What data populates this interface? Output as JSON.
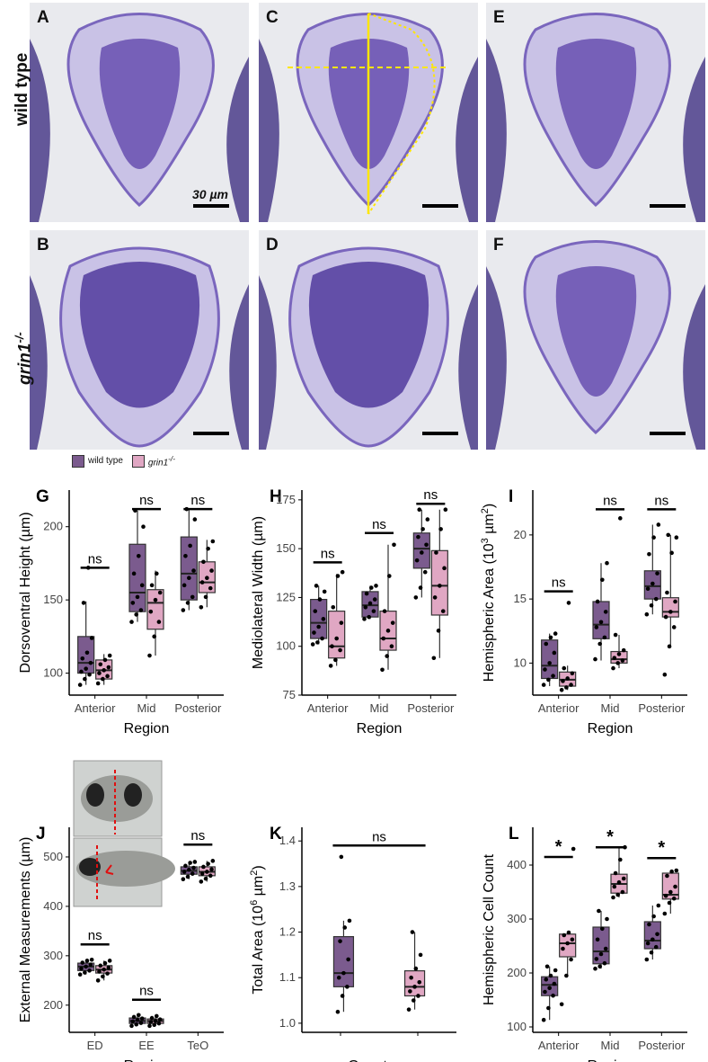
{
  "figure": {
    "row_labels": {
      "wild_type": "wild type",
      "mutant_main": "grin1",
      "mutant_sup": "-/-"
    },
    "panel_letters": {
      "A": "A",
      "B": "B",
      "C": "C",
      "D": "D",
      "E": "E",
      "F": "F"
    },
    "scale_label": "30 µm",
    "legend": {
      "wild_type": "wild type",
      "mutant": "grin1",
      "mutant_sup": "-/-"
    },
    "colors": {
      "wild_type": "#7b5b8e",
      "mutant": "#e0a7c3",
      "stain": "#5a3fa8",
      "background": "#e9eaee"
    }
  },
  "chart_data": [
    {
      "id": "G",
      "type": "box",
      "letter": "G",
      "categories": [
        "Anterior",
        "Mid",
        "Posterior"
      ],
      "xlabel": "Region",
      "ylabel": "Dorsoventral Height (µm)",
      "yticks": [
        100,
        150,
        200
      ],
      "ylim": [
        85,
        225
      ],
      "series": [
        {
          "group": "wild_type",
          "boxes": [
            {
              "min": 92,
              "q1": 100,
              "med": 107,
              "q3": 125,
              "max": 149
            },
            {
              "min": 135,
              "q1": 142,
              "med": 155,
              "q3": 188,
              "max": 211
            },
            {
              "min": 143,
              "q1": 150,
              "med": 168,
              "q3": 193,
              "max": 212
            }
          ],
          "points": [
            [
              92,
              96,
              99,
              101,
              103,
              107,
              110,
              114,
              124,
              148,
              172
            ],
            [
              135,
              140,
              143,
              148,
              152,
              160,
              168,
              180,
              200,
              211
            ],
            [
              143,
              148,
              152,
              160,
              165,
              170,
              180,
              187,
              205,
              212
            ]
          ]
        },
        {
          "group": "mutant",
          "boxes": [
            {
              "min": 92,
              "q1": 96,
              "med": 102,
              "q3": 109,
              "max": 113
            },
            {
              "min": 112,
              "q1": 130,
              "med": 148,
              "q3": 157,
              "max": 170
            },
            {
              "min": 145,
              "q1": 155,
              "med": 162,
              "q3": 176,
              "max": 191
            }
          ],
          "points": [
            [
              93,
              96,
              98,
              100,
              102,
              104,
              106,
              109,
              112
            ],
            [
              112,
              125,
              135,
              142,
              150,
              155,
              160,
              168
            ],
            [
              145,
              152,
              158,
              162,
              165,
              170,
              176,
              185,
              190
            ]
          ]
        }
      ],
      "annotations": [
        "ns",
        "ns",
        "ns"
      ],
      "annotation_y": [
        172,
        212,
        212
      ]
    },
    {
      "id": "H",
      "type": "box",
      "letter": "H",
      "categories": [
        "Anterior",
        "Mid",
        "Posterior"
      ],
      "xlabel": "Region",
      "ylabel": "Mediolateral Width (µm)",
      "yticks": [
        75,
        100,
        125,
        150,
        175
      ],
      "ylim": [
        75,
        180
      ],
      "series": [
        {
          "group": "wild_type",
          "boxes": [
            {
              "min": 101,
              "q1": 104,
              "med": 112,
              "q3": 124,
              "max": 131
            },
            {
              "min": 114,
              "q1": 115,
              "med": 121,
              "q3": 128,
              "max": 131
            },
            {
              "min": 125,
              "q1": 140,
              "med": 150,
              "q3": 158,
              "max": 170
            }
          ],
          "points": [
            [
              101,
              102,
              104,
              107,
              110,
              114,
              118,
              124,
              128,
              131
            ],
            [
              114,
              115,
              118,
              120,
              122,
              124,
              127,
              130,
              131
            ],
            [
              125,
              130,
              138,
              144,
              148,
              152,
              156,
              160,
              165,
              170
            ]
          ]
        },
        {
          "group": "mutant",
          "boxes": [
            {
              "min": 90,
              "q1": 94,
              "med": 100,
              "q3": 118,
              "max": 137
            },
            {
              "min": 88,
              "q1": 98,
              "med": 104,
              "q3": 118,
              "max": 152
            },
            {
              "min": 94,
              "q1": 116,
              "med": 131,
              "q3": 149,
              "max": 170
            }
          ],
          "points": [
            [
              90,
              93,
              98,
              100,
              104,
              112,
              120,
              136,
              138
            ],
            [
              88,
              95,
              100,
              104,
              108,
              112,
              118,
              136,
              152
            ],
            [
              94,
              108,
              118,
              125,
              131,
              140,
              148,
              160,
              170
            ]
          ]
        }
      ],
      "annotations": [
        "ns",
        "ns",
        "ns"
      ],
      "annotation_y": [
        143,
        158,
        173
      ]
    },
    {
      "id": "I",
      "type": "box",
      "letter": "I",
      "categories": [
        "Anterior",
        "Mid",
        "Posterior"
      ],
      "xlabel": "Region",
      "ylabel": "Hemispheric Area (10^3 µm^2)",
      "yticks": [
        10,
        15,
        20
      ],
      "ylim": [
        7.5,
        23.5
      ],
      "series": [
        {
          "group": "wild_type",
          "boxes": [
            {
              "min": 8.2,
              "q1": 8.8,
              "med": 9.8,
              "q3": 11.8,
              "max": 12.3
            },
            {
              "min": 10.2,
              "q1": 11.9,
              "med": 13.0,
              "q3": 14.8,
              "max": 17.8
            },
            {
              "min": 13.8,
              "q1": 15.0,
              "med": 16.0,
              "q3": 17.2,
              "max": 20.8
            }
          ],
          "points": [
            [
              8.3,
              8.7,
              9.0,
              9.5,
              10.0,
              10.8,
              11.5,
              12.0,
              12.3
            ],
            [
              10.3,
              11.5,
              12.0,
              12.8,
              13.2,
              14.0,
              14.8,
              16.5,
              17.8
            ],
            [
              13.8,
              14.5,
              15.0,
              15.8,
              16.2,
              17.0,
              18.5,
              19.8,
              20.8
            ]
          ]
        },
        {
          "group": "mutant",
          "boxes": [
            {
              "min": 7.9,
              "q1": 8.2,
              "med": 8.7,
              "q3": 9.3,
              "max": 9.8
            },
            {
              "min": 9.6,
              "q1": 10.0,
              "med": 10.3,
              "q3": 10.9,
              "max": 12.2
            },
            {
              "min": 11.3,
              "q1": 13.6,
              "med": 14.0,
              "q3": 15.1,
              "max": 20.0
            }
          ],
          "points": [
            [
              7.9,
              8.1,
              8.3,
              8.6,
              8.8,
              9.2,
              9.6,
              14.7
            ],
            [
              9.6,
              10.0,
              10.2,
              10.4,
              10.7,
              11.0,
              12.2,
              21.3
            ],
            [
              9.1,
              11.3,
              12.8,
              13.6,
              14.0,
              14.8,
              15.5,
              18.6,
              19.8,
              20.0
            ]
          ]
        }
      ],
      "annotations": [
        "ns",
        "ns",
        "ns"
      ],
      "annotation_y": [
        15.6,
        22.0,
        22.0
      ]
    },
    {
      "id": "J",
      "type": "box",
      "letter": "J",
      "categories": [
        "ED",
        "EE",
        "TeO"
      ],
      "xlabel": "Region",
      "ylabel": "External Measurements (µm)",
      "yticks": [
        200,
        300,
        400,
        500
      ],
      "ylim": [
        145,
        560
      ],
      "series": [
        {
          "group": "wild_type",
          "boxes": [
            {
              "min": 262,
              "q1": 270,
              "med": 278,
              "q3": 285,
              "max": 292
            },
            {
              "min": 158,
              "q1": 163,
              "med": 168,
              "q3": 174,
              "max": 180
            },
            {
              "min": 455,
              "q1": 465,
              "med": 472,
              "q3": 480,
              "max": 490
            }
          ],
          "points": [
            [
              262,
              266,
              270,
              274,
              278,
              282,
              286,
              290,
              292
            ],
            [
              158,
              161,
              164,
              167,
              170,
              173,
              176,
              180
            ],
            [
              455,
              460,
              466,
              470,
              474,
              478,
              482,
              488,
              490
            ]
          ]
        },
        {
          "group": "mutant",
          "boxes": [
            {
              "min": 250,
              "q1": 265,
              "med": 272,
              "q3": 280,
              "max": 290
            },
            {
              "min": 158,
              "q1": 163,
              "med": 168,
              "q3": 172,
              "max": 178
            },
            {
              "min": 450,
              "q1": 462,
              "med": 470,
              "q3": 480,
              "max": 492
            }
          ],
          "points": [
            [
              250,
              258,
              264,
              268,
              272,
              276,
              280,
              285,
              290
            ],
            [
              158,
              160,
              163,
              166,
              168,
              171,
              174,
              178
            ],
            [
              450,
              456,
              462,
              466,
              470,
              475,
              480,
              486,
              492
            ]
          ]
        }
      ],
      "annotations": [
        "ns",
        "ns",
        "ns"
      ],
      "annotation_y": [
        323,
        211,
        525
      ]
    },
    {
      "id": "K",
      "type": "box",
      "letter": "K",
      "categories": [
        "",
        ""
      ],
      "xlabel": "Genotype",
      "ylabel": "Total Area (10^6 µm^2)",
      "yticks": [
        1.0,
        1.1,
        1.2,
        1.3,
        1.4
      ],
      "ylim": [
        0.98,
        1.43
      ],
      "series": [
        {
          "group": "wild_type",
          "boxes": [
            {
              "min": 1.025,
              "q1": 1.08,
              "med": 1.11,
              "q3": 1.19,
              "max": 1.225
            }
          ],
          "points": [
            [
              1.025,
              1.06,
              1.08,
              1.1,
              1.11,
              1.14,
              1.18,
              1.21,
              1.225,
              1.365
            ]
          ]
        },
        {
          "group": "mutant",
          "boxes": [
            {
              "min": 1.03,
              "q1": 1.06,
              "med": 1.08,
              "q3": 1.115,
              "max": 1.2
            }
          ],
          "points": [
            [
              1.03,
              1.05,
              1.06,
              1.07,
              1.08,
              1.09,
              1.1,
              1.12,
              1.15,
              1.2
            ]
          ]
        }
      ],
      "annotations": [
        "ns"
      ],
      "annotation_y": [
        1.39
      ],
      "span_both": true
    },
    {
      "id": "L",
      "type": "box",
      "letter": "L",
      "categories": [
        "Anterior",
        "Mid",
        "Posterior"
      ],
      "xlabel": "Region",
      "ylabel": "Hemispheric Cell Count",
      "yticks": [
        100,
        200,
        300,
        400
      ],
      "ylim": [
        90,
        470
      ],
      "series": [
        {
          "group": "wild_type",
          "boxes": [
            {
              "min": 113,
              "q1": 158,
              "med": 178,
              "q3": 193,
              "max": 212
            },
            {
              "min": 208,
              "q1": 217,
              "med": 240,
              "q3": 285,
              "max": 315
            },
            {
              "min": 225,
              "q1": 245,
              "med": 260,
              "q3": 295,
              "max": 325
            }
          ],
          "points": [
            [
              113,
              135,
              158,
              165,
              172,
              180,
              188,
              195,
              205,
              212
            ],
            [
              208,
              212,
              218,
              226,
              235,
              245,
              262,
              282,
              300,
              315
            ],
            [
              225,
              238,
              248,
              255,
              262,
              272,
              290,
              305,
              325
            ]
          ]
        },
        {
          "group": "mutant",
          "boxes": [
            {
              "min": 195,
              "q1": 230,
              "med": 255,
              "q3": 272,
              "max": 275
            },
            {
              "min": 340,
              "q1": 348,
              "med": 365,
              "q3": 383,
              "max": 433
            },
            {
              "min": 310,
              "q1": 337,
              "med": 345,
              "q3": 385,
              "max": 390
            }
          ],
          "points": [
            [
              142,
              195,
              225,
              245,
              255,
              262,
              270,
              275,
              430
            ],
            [
              340,
              345,
              350,
              360,
              368,
              375,
              385,
              410,
              433
            ],
            [
              310,
              330,
              338,
              343,
              350,
              360,
              380,
              388,
              390
            ]
          ]
        }
      ],
      "annotations": [
        "*",
        "*",
        "*"
      ],
      "annotation_y": [
        415,
        433,
        413
      ]
    }
  ]
}
